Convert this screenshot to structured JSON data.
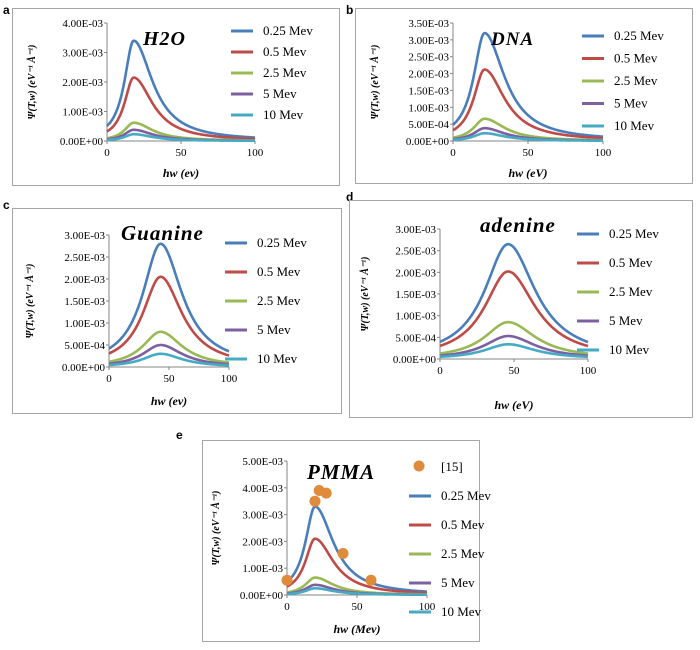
{
  "figure": {
    "panels": [
      {
        "letter": "a",
        "title": "H2O",
        "xlabel": "hw (ev)",
        "ylabel": "Ψ(T,w) (eV⁻¹ Å⁻¹)"
      },
      {
        "letter": "b",
        "title": "DNA",
        "xlabel": "hw (eV)",
        "ylabel": "Ψ(T,w) (eV⁻¹ Å⁻¹)"
      },
      {
        "letter": "c",
        "title": "Guanine",
        "xlabel": "hw (ev)",
        "ylabel": "Ψ(T,w) (eV⁻¹ Å⁻¹)"
      },
      {
        "letter": "d",
        "title": "adenine",
        "xlabel": "hw (eV)",
        "ylabel": "Ψ(T,w) (eV⁻¹ Å⁻¹)"
      },
      {
        "letter": "e",
        "title": "PMMA",
        "xlabel": "hw (Mev)",
        "ylabel": "Ψ(T,w) (eV⁻¹ Å⁻¹)"
      }
    ],
    "legend_labels": [
      "0.25 Mev",
      "0.5 Mev",
      "2.5 Mev",
      "5 Mev",
      "10 Mev"
    ],
    "reference_label": "[15]",
    "series_colors": [
      "#4a7ebb",
      "#be4b48",
      "#98b954",
      "#7d60a0",
      "#46aac5"
    ],
    "reference_color": "#e08a3c"
  },
  "chart_data": [
    {
      "type": "line",
      "title": "H2O",
      "xlabel": "hw (ev)",
      "ylabel": "Ψ(T,w) (eV⁻¹ Å⁻¹)",
      "xlim": [
        0,
        100
      ],
      "ylim": [
        0,
        0.004
      ],
      "xticks": [
        0,
        50,
        100
      ],
      "yticks": [
        "0.00E+00",
        "1.00E-03",
        "2.00E-03",
        "3.00E-03",
        "4.00E-03"
      ],
      "legend": "right",
      "peak_x": 18,
      "series": [
        {
          "name": "0.25 Mev",
          "peak": 0.0034
        },
        {
          "name": "0.5 Mev",
          "peak": 0.00215
        },
        {
          "name": "2.5 Mev",
          "peak": 0.00062
        },
        {
          "name": "5 Mev",
          "peak": 0.00038
        },
        {
          "name": "10 Mev",
          "peak": 0.00023
        }
      ]
    },
    {
      "type": "line",
      "title": "DNA",
      "xlabel": "hw (eV)",
      "ylabel": "Ψ(T,w) (eV⁻¹ Å⁻¹)",
      "xlim": [
        0,
        100
      ],
      "ylim": [
        0,
        0.0035
      ],
      "xticks": [
        0,
        50,
        100
      ],
      "yticks": [
        "0.00E+00",
        "5.00E-04",
        "1.00E-03",
        "1.50E-03",
        "2.00E-03",
        "2.50E-03",
        "3.00E-03",
        "3.50E-03"
      ],
      "legend": "right",
      "peak_x": 21,
      "series": [
        {
          "name": "0.25 Mev",
          "peak": 0.0032
        },
        {
          "name": "0.5 Mev",
          "peak": 0.00212
        },
        {
          "name": "2.5 Mev",
          "peak": 0.00066
        },
        {
          "name": "5 Mev",
          "peak": 0.00038
        },
        {
          "name": "10 Mev",
          "peak": 0.00023
        }
      ]
    },
    {
      "type": "line",
      "title": "Guanine",
      "xlabel": "hw (ev)",
      "ylabel": "Ψ(T,w) (eV⁻¹ Å⁻¹)",
      "xlim": [
        0,
        100
      ],
      "ylim": [
        0,
        0.003
      ],
      "xticks": [
        0,
        50,
        100
      ],
      "yticks": [
        "0.00E+00",
        "5.00E-04",
        "1.00E-03",
        "1.50E-03",
        "2.00E-03",
        "2.50E-03",
        "3.00E-03"
      ],
      "legend": "right",
      "peak_x": 43,
      "series": [
        {
          "name": "0.25 Mev",
          "peak": 0.0028
        },
        {
          "name": "0.5 Mev",
          "peak": 0.00205
        },
        {
          "name": "2.5 Mev",
          "peak": 0.0008
        },
        {
          "name": "5 Mev",
          "peak": 0.0005
        },
        {
          "name": "10 Mev",
          "peak": 0.0003
        }
      ]
    },
    {
      "type": "line",
      "title": "adenine",
      "xlabel": "hw (eV)",
      "ylabel": "Ψ(T,w) (eV⁻¹ Å⁻¹)",
      "xlim": [
        0,
        100
      ],
      "ylim": [
        0,
        0.003
      ],
      "xticks": [
        0,
        50,
        100
      ],
      "yticks": [
        "0.00E+00",
        "5.00E-04",
        "1.00E-03",
        "1.50E-03",
        "2.00E-03",
        "2.50E-03",
        "3.00E-03"
      ],
      "legend": "right",
      "peak_x": 46,
      "series": [
        {
          "name": "0.25 Mev",
          "peak": 0.00265
        },
        {
          "name": "0.5 Mev",
          "peak": 0.00202
        },
        {
          "name": "2.5 Mev",
          "peak": 0.00085
        },
        {
          "name": "5 Mev",
          "peak": 0.00053
        },
        {
          "name": "10 Mev",
          "peak": 0.00034
        }
      ]
    },
    {
      "type": "line",
      "title": "PMMA",
      "xlabel": "hw (Mev)",
      "ylabel": "Ψ(T,w) (eV⁻¹ Å⁻¹)",
      "xlim": [
        0,
        100
      ],
      "ylim": [
        0,
        0.005
      ],
      "xticks": [
        0,
        50,
        100
      ],
      "yticks": [
        "0.00E+00",
        "1.00E-03",
        "2.00E-03",
        "3.00E-03",
        "4.00E-03",
        "5.00E-03"
      ],
      "legend": "right",
      "peak_x": 20,
      "series": [
        {
          "name": "0.25 Mev",
          "peak": 0.0033
        },
        {
          "name": "0.5 Mev",
          "peak": 0.0021
        },
        {
          "name": "2.5 Mev",
          "peak": 0.00065
        },
        {
          "name": "5 Mev",
          "peak": 0.00038
        },
        {
          "name": "10 Mev",
          "peak": 0.00025
        }
      ],
      "reference_points": {
        "name": "[15]",
        "x": [
          0,
          20,
          23,
          28,
          40,
          60
        ],
        "y": [
          0.00055,
          0.0035,
          0.0039,
          0.0038,
          0.00155,
          0.00055
        ]
      }
    }
  ]
}
